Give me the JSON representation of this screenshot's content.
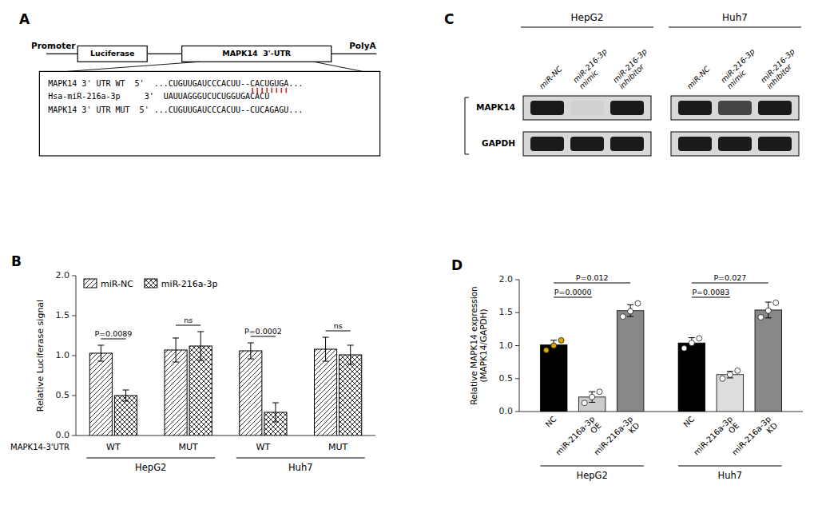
{
  "chart_data": [
    {
      "type": "diagram",
      "title": "A",
      "annotations": [
        "Promoter",
        "Luciferase",
        "MAPK14  3'-UTR",
        "PolyA",
        "MAPK14 3' UTR WT  5'  ...CUGUUGAUCCCACUU--CACUGUGA...",
        "Hsa-miR-216a-3p     3'  UAUUAGGGUCUCUGGUGACACU",
        "MAPK14 3' UTR MUT  5' ...CUGUUGAUCCCACUU--CUCAGAGU..."
      ]
    },
    {
      "type": "diagram",
      "title": "C",
      "annotations": [
        "HepG2",
        "Huh7"
      ],
      "categories": [
        "miR-NC",
        "miR-216-3p\nmimic",
        "miR-216-3p\ninhibitor",
        "miR-NC",
        "miR-216-3p\nmimic",
        "miR-216-3p\ninhibitor"
      ],
      "series": [
        {
          "name": "MAPK14",
          "colors": [
            "#1a1a1a",
            "#d0d0d0",
            "#1a1a1a",
            "#1a1a1a",
            "#454545",
            "#1a1a1a"
          ]
        },
        {
          "name": "GAPDH",
          "colors": [
            "#1a1a1a",
            "#1a1a1a",
            "#1a1a1a",
            "#1a1a1a",
            "#1a1a1a",
            "#1a1a1a"
          ]
        }
      ]
    },
    {
      "type": "bar",
      "title": "B",
      "categories": [
        "WT",
        "MUT",
        "WT",
        "MUT"
      ],
      "series": [
        {
          "name": "miR-NC",
          "values": [
            1.03,
            1.07,
            1.06,
            1.08
          ],
          "errors": [
            0.1,
            0.15,
            0.1,
            0.15
          ]
        },
        {
          "name": "miR-216a-3p",
          "values": [
            0.5,
            1.12,
            0.29,
            1.01
          ],
          "errors": [
            0.07,
            0.18,
            0.12,
            0.12
          ]
        }
      ],
      "ylabel": "Relative Luciferase signal",
      "ylim": [
        0,
        2.0
      ],
      "yticks": [
        {
          "value": 0.0,
          "label": "0.0"
        },
        0.5,
        {
          "value": 1.0,
          "label": "1.0"
        },
        1.5,
        {
          "value": 2.0,
          "label": "2.0"
        }
      ],
      "legend": "top-left",
      "grid": false,
      "annotations": [
        "P=0.0089",
        "ns",
        "P=0.0002",
        "ns",
        "MAPK14-3'UTR",
        "HepG2",
        "Huh7"
      ]
    },
    {
      "type": "bar",
      "title": "D",
      "categories": [
        "NC",
        "miR-216a-3p\nOE",
        "miR-216a-3p\nKD",
        "NC",
        "miR-216a-3p\nOE",
        "miR-216a-3p\nKD"
      ],
      "series": [
        {
          "type": "bar",
          "values": [
            1.01,
            0.22,
            1.53,
            1.04,
            0.56,
            1.54
          ],
          "errors": [
            0.07,
            0.08,
            0.09,
            0.08,
            0.05,
            0.12
          ],
          "colors": [
            "#000000",
            "#cccccc",
            "#888888",
            "#000000",
            "#dddddd",
            "#888888"
          ]
        },
        {
          "type": "scatter",
          "values": [
            [
              0.93,
              1.0,
              1.08
            ],
            [
              0.13,
              0.22,
              0.3
            ],
            [
              1.44,
              1.52,
              1.64
            ],
            [
              0.96,
              1.04,
              1.11
            ],
            [
              0.5,
              0.56,
              0.62
            ],
            [
              1.43,
              1.53,
              1.65
            ]
          ],
          "colors": [
            "#d4a800",
            "#ffffff",
            "#ffffff",
            "#ffffff",
            "#ffffff",
            "#ffffff"
          ]
        }
      ],
      "ylabel": "Relative MAPK14 expression\n(MAPK14/GAPDH)",
      "ylim": [
        0,
        2.0
      ],
      "yticks": [
        {
          "value": 0.0,
          "label": "0.0"
        },
        0.5,
        {
          "value": 1.0,
          "label": "1.0"
        },
        1.5,
        {
          "value": 2.0,
          "label": "2.0"
        }
      ],
      "grid": false,
      "annotations": [
        "P=0.0000",
        "P=0.012",
        "P=0.0083",
        "P=0.027",
        "HepG2",
        "Huh7"
      ]
    }
  ]
}
